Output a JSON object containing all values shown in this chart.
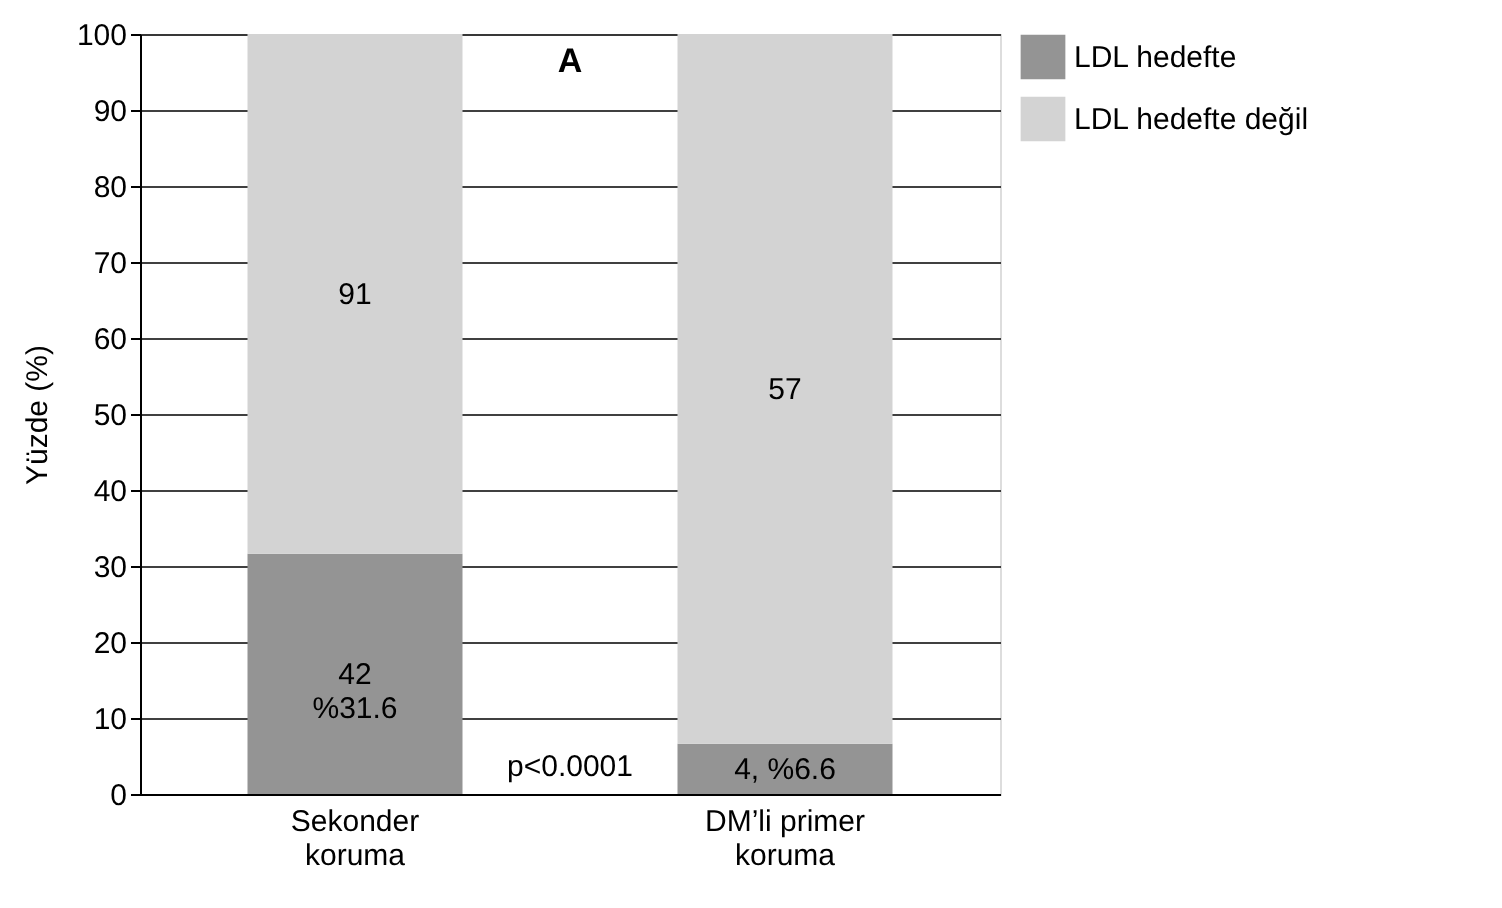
{
  "chart_data": {
    "type": "bar",
    "stacked": true,
    "ylabel": "Yüzde (%)",
    "categories": [
      "Sekonder koruma",
      "DM’li primer koruma"
    ],
    "series": [
      {
        "name": "LDL hedefte",
        "color": "#949494",
        "values": [
          31.6,
          6.6
        ]
      },
      {
        "name": "LDL hedefte değil",
        "color": "#d3d3d3",
        "values": [
          68.4,
          93.4
        ]
      }
    ],
    "ylim": [
      0,
      100
    ],
    "yticks": [
      0,
      10,
      20,
      30,
      40,
      50,
      60,
      70,
      80,
      90,
      100
    ],
    "grid": "y",
    "legend": "right",
    "annotations": [
      "A",
      "p<0.0001",
      "42\n%31.6",
      "4, %6.6",
      "91",
      "57"
    ]
  }
}
